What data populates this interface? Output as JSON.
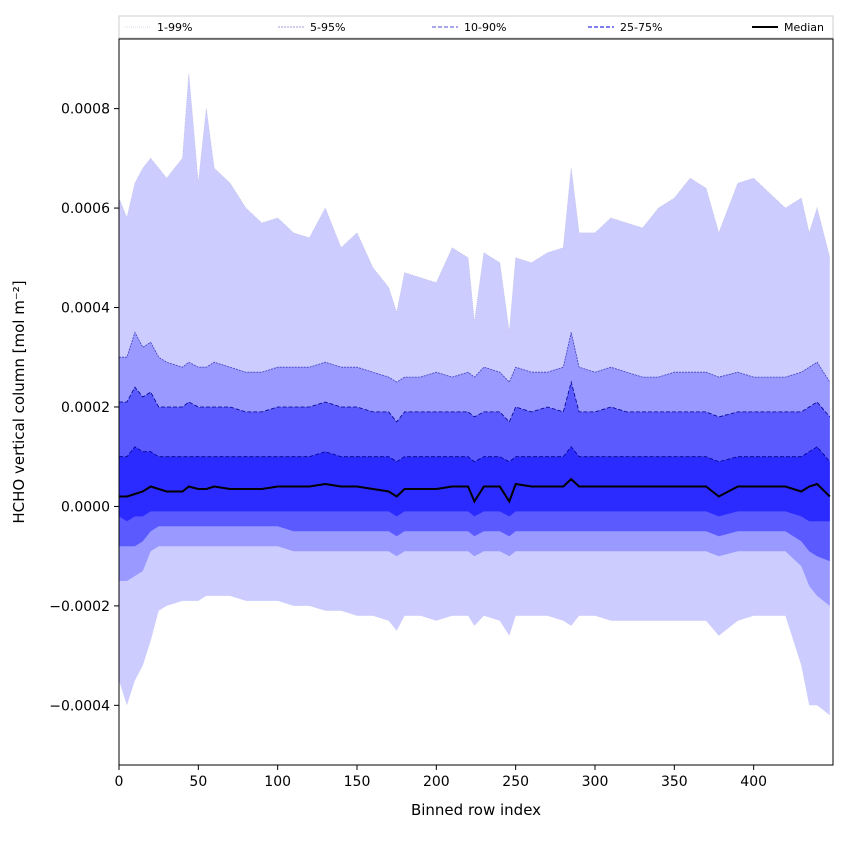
{
  "chart_data": {
    "type": "area",
    "title": "",
    "xlabel": "Binned row index",
    "ylabel": "HCHO vertical column [mol m⁻²]",
    "xlim": [
      0,
      450
    ],
    "ylim": [
      -0.00052,
      0.00094
    ],
    "xticks": [
      0,
      50,
      100,
      150,
      200,
      250,
      300,
      350,
      400
    ],
    "xtick_labels": [
      "0",
      "50",
      "100",
      "150",
      "200",
      "250",
      "300",
      "350",
      "400"
    ],
    "yticks": [
      -0.0004,
      -0.0002,
      0.0,
      0.0002,
      0.0004,
      0.0006,
      0.0008
    ],
    "ytick_labels": [
      "−0.0004",
      "−0.0002",
      "0.0000",
      "0.0002",
      "0.0004",
      "0.0006",
      "0.0008"
    ],
    "grid": false,
    "legend_position": "top",
    "x": [
      0,
      5,
      10,
      15,
      20,
      25,
      30,
      40,
      44,
      50,
      55,
      60,
      70,
      80,
      90,
      100,
      110,
      120,
      130,
      140,
      150,
      160,
      170,
      175,
      180,
      190,
      200,
      210,
      220,
      224,
      230,
      240,
      246,
      250,
      260,
      270,
      280,
      285,
      290,
      300,
      310,
      320,
      330,
      340,
      350,
      360,
      370,
      378,
      390,
      400,
      410,
      420,
      430,
      435,
      440,
      448
    ],
    "series": [
      {
        "name": "1-99%",
        "color": "#ccccff",
        "lower": [
          -0.00035,
          -0.0004,
          -0.00035,
          -0.00032,
          -0.00027,
          -0.00021,
          -0.0002,
          -0.00019,
          -0.00019,
          -0.00019,
          -0.00018,
          -0.00018,
          -0.00018,
          -0.00019,
          -0.00019,
          -0.00019,
          -0.0002,
          -0.0002,
          -0.00021,
          -0.00021,
          -0.00022,
          -0.00022,
          -0.00023,
          -0.00025,
          -0.00022,
          -0.00022,
          -0.00023,
          -0.00022,
          -0.00022,
          -0.00024,
          -0.00022,
          -0.00023,
          -0.00026,
          -0.00022,
          -0.00022,
          -0.00022,
          -0.00023,
          -0.00024,
          -0.00022,
          -0.00022,
          -0.00023,
          -0.00023,
          -0.00023,
          -0.00023,
          -0.00023,
          -0.00023,
          -0.00023,
          -0.00026,
          -0.00023,
          -0.00022,
          -0.00022,
          -0.00022,
          -0.00032,
          -0.0004,
          -0.0004,
          -0.00042
        ],
        "upper": [
          0.00062,
          0.00058,
          0.00065,
          0.00068,
          0.0007,
          0.00068,
          0.00066,
          0.0007,
          0.00087,
          0.00065,
          0.0008,
          0.00068,
          0.00065,
          0.0006,
          0.00057,
          0.00058,
          0.00055,
          0.00054,
          0.0006,
          0.00052,
          0.00055,
          0.00048,
          0.00044,
          0.00039,
          0.00047,
          0.00046,
          0.00045,
          0.00052,
          0.0005,
          0.00037,
          0.00051,
          0.00049,
          0.00035,
          0.0005,
          0.00049,
          0.00051,
          0.00052,
          0.00068,
          0.00055,
          0.00055,
          0.00058,
          0.00057,
          0.00056,
          0.0006,
          0.00062,
          0.00066,
          0.00064,
          0.00055,
          0.00065,
          0.00066,
          0.00063,
          0.0006,
          0.00062,
          0.00055,
          0.0006,
          0.0005
        ]
      },
      {
        "name": "5-95%",
        "color": "#9999ff",
        "lower": [
          -0.00015,
          -0.00015,
          -0.00014,
          -0.00013,
          -9e-05,
          -8e-05,
          -8e-05,
          -8e-05,
          -8e-05,
          -8e-05,
          -8e-05,
          -8e-05,
          -8e-05,
          -8e-05,
          -8e-05,
          -8e-05,
          -9e-05,
          -9e-05,
          -9e-05,
          -9e-05,
          -9e-05,
          -9e-05,
          -9e-05,
          -0.0001,
          -9e-05,
          -9e-05,
          -9e-05,
          -9e-05,
          -9e-05,
          -0.0001,
          -9e-05,
          -9e-05,
          -0.0001,
          -9e-05,
          -9e-05,
          -9e-05,
          -9e-05,
          -9e-05,
          -9e-05,
          -9e-05,
          -9e-05,
          -9e-05,
          -9e-05,
          -9e-05,
          -9e-05,
          -9e-05,
          -9e-05,
          -0.0001,
          -9e-05,
          -9e-05,
          -9e-05,
          -9e-05,
          -0.00012,
          -0.00016,
          -0.00018,
          -0.0002
        ],
        "upper": [
          0.0003,
          0.0003,
          0.00035,
          0.00032,
          0.00033,
          0.0003,
          0.00029,
          0.00028,
          0.00029,
          0.00028,
          0.00028,
          0.00029,
          0.00028,
          0.00027,
          0.00027,
          0.00028,
          0.00028,
          0.00028,
          0.00029,
          0.00028,
          0.00028,
          0.00027,
          0.00026,
          0.00025,
          0.00026,
          0.00026,
          0.00027,
          0.00026,
          0.00027,
          0.00026,
          0.00028,
          0.00027,
          0.00025,
          0.00028,
          0.00027,
          0.00027,
          0.00028,
          0.00035,
          0.00028,
          0.00027,
          0.00028,
          0.00027,
          0.00026,
          0.00026,
          0.00027,
          0.00027,
          0.00027,
          0.00026,
          0.00027,
          0.00026,
          0.00026,
          0.00026,
          0.00027,
          0.00028,
          0.00029,
          0.00025
        ]
      },
      {
        "name": "10-90%",
        "color": "#5a5aff",
        "lower": [
          -8e-05,
          -8e-05,
          -8e-05,
          -7e-05,
          -5e-05,
          -4e-05,
          -4e-05,
          -4e-05,
          -4e-05,
          -4e-05,
          -4e-05,
          -4e-05,
          -4e-05,
          -4e-05,
          -4e-05,
          -4e-05,
          -5e-05,
          -5e-05,
          -5e-05,
          -5e-05,
          -5e-05,
          -5e-05,
          -5e-05,
          -6e-05,
          -5e-05,
          -5e-05,
          -5e-05,
          -5e-05,
          -5e-05,
          -6e-05,
          -5e-05,
          -5e-05,
          -6e-05,
          -5e-05,
          -5e-05,
          -5e-05,
          -5e-05,
          -5e-05,
          -5e-05,
          -5e-05,
          -5e-05,
          -5e-05,
          -5e-05,
          -5e-05,
          -5e-05,
          -5e-05,
          -5e-05,
          -6e-05,
          -5e-05,
          -5e-05,
          -5e-05,
          -5e-05,
          -7e-05,
          -9e-05,
          -0.0001,
          -0.00011
        ],
        "upper": [
          0.00021,
          0.00021,
          0.00024,
          0.00022,
          0.00023,
          0.0002,
          0.0002,
          0.0002,
          0.00021,
          0.0002,
          0.0002,
          0.0002,
          0.0002,
          0.00019,
          0.00019,
          0.0002,
          0.0002,
          0.0002,
          0.00021,
          0.0002,
          0.0002,
          0.00019,
          0.00019,
          0.00017,
          0.00019,
          0.00019,
          0.00019,
          0.00019,
          0.00019,
          0.00018,
          0.00019,
          0.00019,
          0.00017,
          0.0002,
          0.00019,
          0.0002,
          0.00019,
          0.00025,
          0.00019,
          0.00019,
          0.0002,
          0.00019,
          0.00019,
          0.00019,
          0.00019,
          0.00019,
          0.00019,
          0.00018,
          0.00019,
          0.00019,
          0.00019,
          0.00019,
          0.00019,
          0.0002,
          0.00021,
          0.00018
        ]
      },
      {
        "name": "25-75%",
        "color": "#2b2bff",
        "lower": [
          -2e-05,
          -3e-05,
          -2e-05,
          -2e-05,
          -1e-05,
          -1e-05,
          -1e-05,
          -1e-05,
          -1e-05,
          -1e-05,
          -1e-05,
          -1e-05,
          -1e-05,
          -1e-05,
          -1e-05,
          -1e-05,
          -1e-05,
          -1e-05,
          -1e-05,
          -1e-05,
          -1e-05,
          -1e-05,
          -1e-05,
          -2e-05,
          -1e-05,
          -1e-05,
          -1e-05,
          -1e-05,
          -1e-05,
          -2e-05,
          -1e-05,
          -1e-05,
          -2e-05,
          -1e-05,
          -1e-05,
          -1e-05,
          -1e-05,
          -1e-05,
          -1e-05,
          -1e-05,
          -1e-05,
          -1e-05,
          -1e-05,
          -1e-05,
          -1e-05,
          -1e-05,
          -1e-05,
          -2e-05,
          -1e-05,
          -1e-05,
          -1e-05,
          -1e-05,
          -2e-05,
          -3e-05,
          -3e-05,
          -3e-05
        ],
        "upper": [
          0.0001,
          0.0001,
          0.00012,
          0.00011,
          0.00011,
          0.0001,
          0.0001,
          0.0001,
          0.0001,
          0.0001,
          0.0001,
          0.0001,
          0.0001,
          0.0001,
          0.0001,
          0.0001,
          0.0001,
          0.0001,
          0.00011,
          0.0001,
          0.0001,
          0.0001,
          0.0001,
          9e-05,
          0.0001,
          0.0001,
          0.0001,
          0.0001,
          0.0001,
          9e-05,
          0.0001,
          0.0001,
          9e-05,
          0.0001,
          0.0001,
          0.0001,
          0.0001,
          0.00012,
          0.0001,
          0.0001,
          0.0001,
          0.0001,
          0.0001,
          0.0001,
          0.0001,
          0.0001,
          0.0001,
          9e-05,
          0.0001,
          0.0001,
          0.0001,
          0.0001,
          0.0001,
          0.00011,
          0.00012,
          9e-05
        ]
      },
      {
        "name": "Median",
        "color": "#000000",
        "values": [
          2e-05,
          2e-05,
          2.5e-05,
          3e-05,
          4e-05,
          3.5e-05,
          3e-05,
          3e-05,
          4e-05,
          3.5e-05,
          3.5e-05,
          4e-05,
          3.5e-05,
          3.5e-05,
          3.5e-05,
          4e-05,
          4e-05,
          4e-05,
          4.5e-05,
          4e-05,
          4e-05,
          3.5e-05,
          3e-05,
          2e-05,
          3.5e-05,
          3.5e-05,
          3.5e-05,
          4e-05,
          4e-05,
          1e-05,
          4e-05,
          4e-05,
          1e-05,
          4.5e-05,
          4e-05,
          4e-05,
          4e-05,
          5.5e-05,
          4e-05,
          4e-05,
          4e-05,
          4e-05,
          4e-05,
          4e-05,
          4e-05,
          4e-05,
          4e-05,
          2e-05,
          4e-05,
          4e-05,
          4e-05,
          4e-05,
          3e-05,
          4e-05,
          4.5e-05,
          2e-05
        ]
      }
    ]
  }
}
